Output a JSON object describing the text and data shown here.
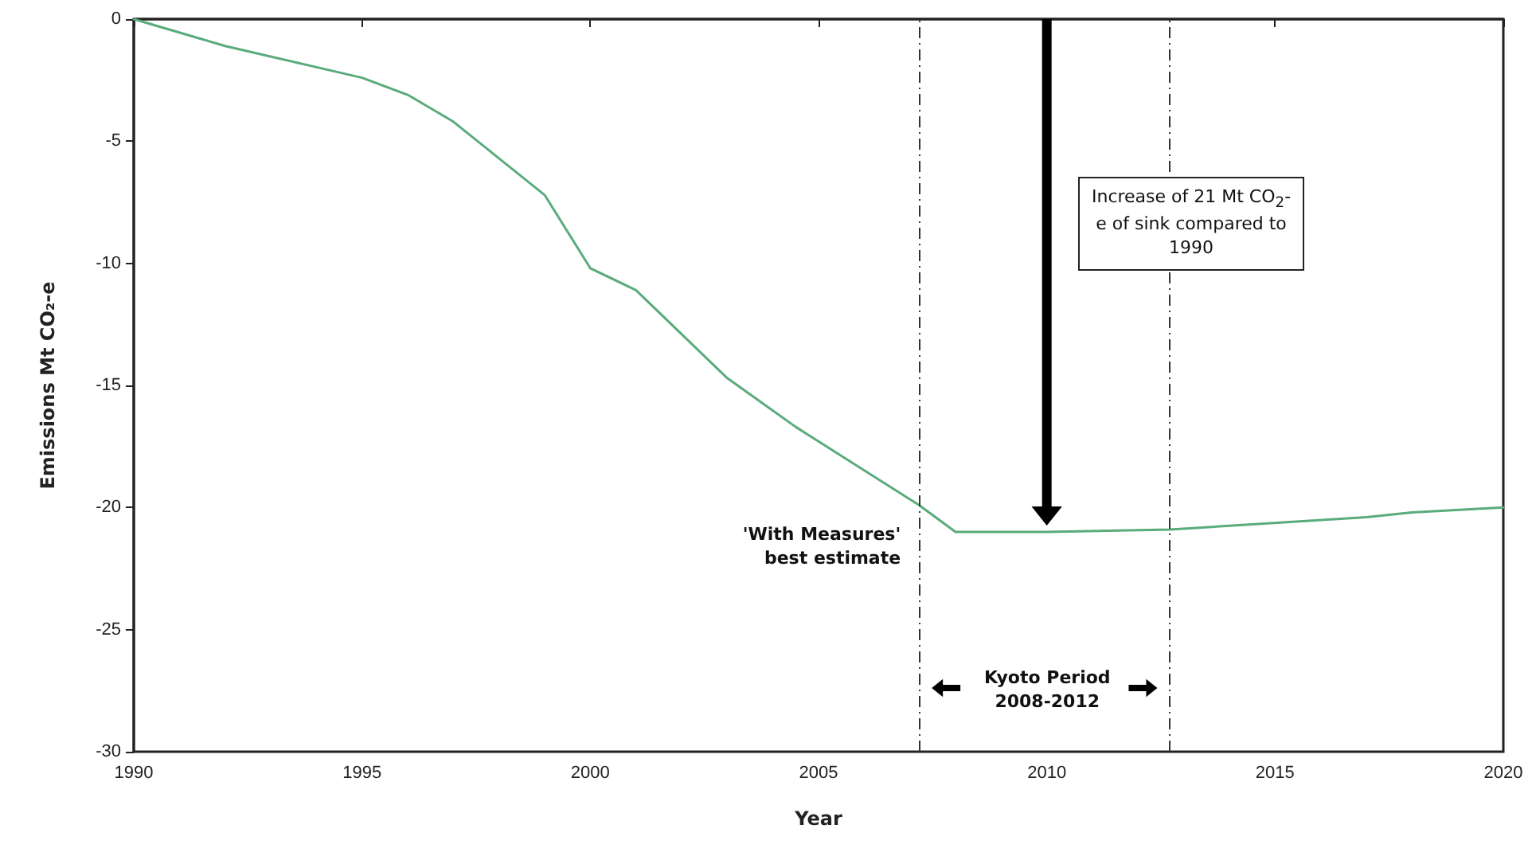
{
  "chart_data": {
    "type": "line",
    "xlabel": "Year",
    "ylabel": "Emissions Mt CO₂-e",
    "x": [
      1990,
      1992,
      1995,
      1996,
      1997,
      1999,
      2000,
      2001,
      2003,
      2004.5,
      2007.2,
      2008,
      2010,
      2012.7,
      2017,
      2018,
      2020
    ],
    "series": [
      {
        "color": "#5aab7c",
        "values": [
          0,
          -1.1,
          -2.4,
          -3.1,
          -4.2,
          -7.2,
          -10.2,
          -11.1,
          -14.7,
          -16.7,
          -19.9,
          -21.0,
          -21.0,
          -20.9,
          -20.4,
          -20.2,
          -20.0
        ]
      }
    ],
    "xlim": [
      1990,
      2020
    ],
    "xticks": [
      1990,
      1995,
      2000,
      2005,
      2010,
      2015,
      2020
    ],
    "ylim": [
      -30,
      0
    ],
    "yticks": [
      -30,
      -25,
      -20,
      -15,
      -10,
      -5,
      0
    ],
    "ref_lines": [
      {
        "axis": "x",
        "value": 2007.2,
        "color": "#333333",
        "line_style": "dashed"
      },
      {
        "axis": "x",
        "value": 2012.7,
        "color": "#333333",
        "line_style": "dashed"
      }
    ],
    "annotations": [
      "'With Measures' best estimate",
      "Increase of 21 Mt CO$_{2}$-e of sink compared to 1990",
      "Kyoto Period 2008-2012"
    ],
    "grid": false,
    "marker": "none",
    "line_style": "solid"
  }
}
